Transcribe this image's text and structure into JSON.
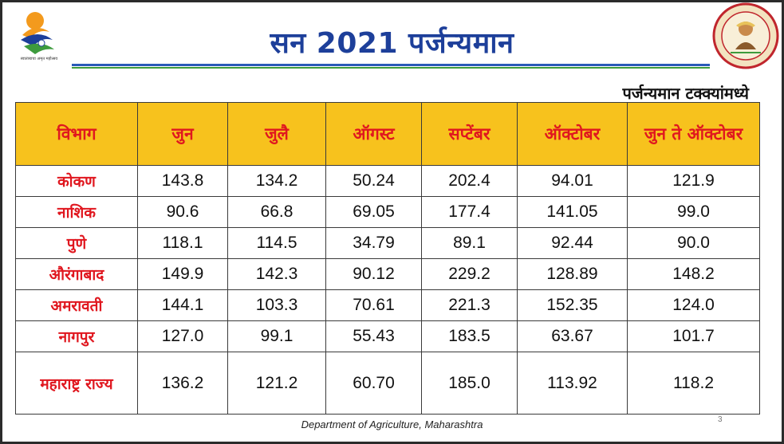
{
  "header": {
    "title": "सन 2021 पर्जन्यमान",
    "left_logo_caption": "स्वातंत्र्याचा अमृत महोत्सव",
    "seal_text": "शेतकऱ्यांच्या सेवेसी"
  },
  "subtitle": "पर्जन्यमान टक्क्यांमध्ये",
  "table": {
    "headers": [
      "विभाग",
      "जुन",
      "जुलै",
      "ऑगस्ट",
      "सप्टेंबर",
      "ऑक्टोबर",
      "जुन ते ऑक्टोबर"
    ],
    "rows": [
      [
        "कोकण",
        "143.8",
        "134.2",
        "50.24",
        "202.4",
        "94.01",
        "121.9"
      ],
      [
        "नाशिक",
        "90.6",
        "66.8",
        "69.05",
        "177.4",
        "141.05",
        "99.0"
      ],
      [
        "पुणे",
        "118.1",
        "114.5",
        "34.79",
        "89.1",
        "92.44",
        "90.0"
      ],
      [
        "औरंगाबाद",
        "149.9",
        "142.3",
        "90.12",
        "229.2",
        "128.89",
        "148.2"
      ],
      [
        "अमरावती",
        "144.1",
        "103.3",
        "70.61",
        "221.3",
        "152.35",
        "124.0"
      ],
      [
        "नागपुर",
        "127.0",
        "99.1",
        "55.43",
        "183.5",
        "63.67",
        "101.7"
      ],
      [
        "महाराष्ट्र राज्य",
        "136.2",
        "121.2",
        "60.70",
        "185.0",
        "113.92",
        "118.2"
      ]
    ]
  },
  "footer": {
    "department": "Department of Agriculture, Maharashtra",
    "page_number": "3"
  },
  "colors": {
    "title": "#1d3f9a",
    "header_bg": "#f7c21d",
    "header_text": "#e0171f",
    "division_text": "#e0171f"
  },
  "icons": {
    "left_logo": "azadi-ka-amrit-mahotsav-logo",
    "right_logo": "agriculture-department-seal"
  }
}
